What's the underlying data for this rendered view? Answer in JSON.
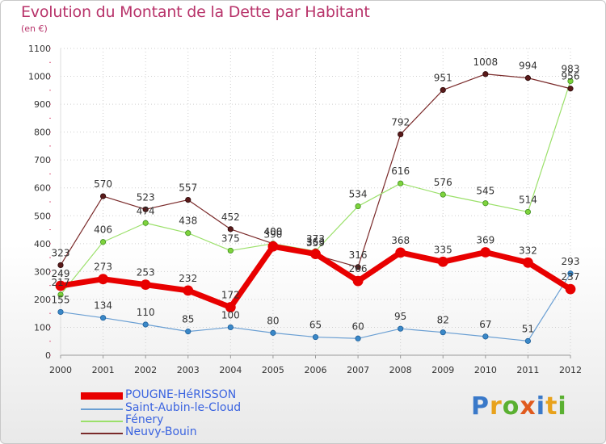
{
  "title": "Evolution du Montant de la Dette par Habitant",
  "subtitle": "(en €)",
  "logo": {
    "text": "Proxiti",
    "letters": [
      "P",
      "r",
      "o",
      "x",
      "i",
      "t",
      "i"
    ],
    "colors": [
      "#3a79c9",
      "#e8a21c",
      "#5ab031",
      "#e05a1e",
      "#3a79c9",
      "#e8a21c",
      "#5ab031"
    ]
  },
  "chart_data": {
    "type": "line",
    "title": "Evolution du Montant de la Dette par Habitant",
    "ylabel": "(en €)",
    "x": [
      "2000",
      "2001",
      "2002",
      "2003",
      "2004",
      "2005",
      "2006",
      "2007",
      "2008",
      "2009",
      "2010",
      "2011",
      "2012"
    ],
    "ylim": [
      0,
      1100
    ],
    "yticks": [
      0,
      100,
      200,
      300,
      400,
      500,
      600,
      700,
      800,
      900,
      1000,
      1100
    ],
    "grid": true,
    "legend_position": "bottom-left",
    "series": [
      {
        "name": "POUGNE-HéRISSON",
        "color": "#e80000",
        "values": [
          249,
          273,
          253,
          232,
          172,
          390,
          363,
          266,
          368,
          335,
          369,
          332,
          237
        ]
      },
      {
        "name": "Saint-Aubin-le-Cloud",
        "color": "#6a9fd3",
        "values": [
          155,
          134,
          110,
          85,
          100,
          80,
          65,
          60,
          95,
          82,
          67,
          51,
          293
        ]
      },
      {
        "name": "Fénery",
        "color": "#9be06a",
        "values": [
          217,
          406,
          474,
          438,
          375,
          400,
          373,
          534,
          616,
          576,
          545,
          514,
          983
        ]
      },
      {
        "name": "Neuvy-Bouin",
        "color": "#7a2a2a",
        "values": [
          323,
          570,
          523,
          557,
          452,
          400,
          359,
          316,
          792,
          951,
          1008,
          994,
          956
        ]
      }
    ]
  }
}
